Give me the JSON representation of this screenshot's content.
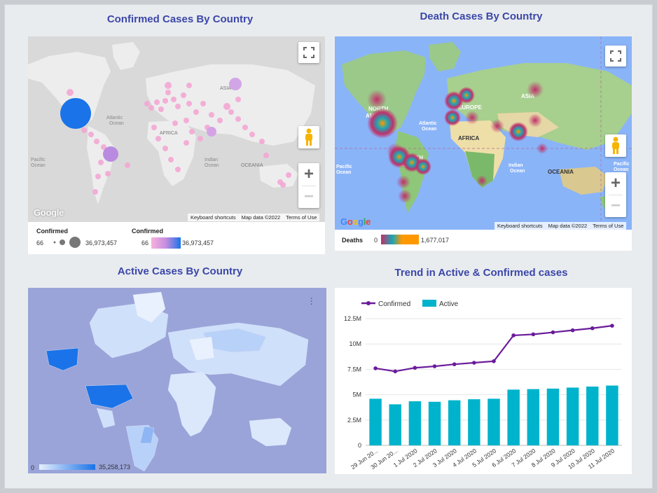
{
  "colors": {
    "title": "#3b47a8",
    "confirmed_line": "#6a1b9a",
    "active_bar": "#00b3cc",
    "active_map_bg": "#9aa4d9",
    "grey_map": "#d8d8d8",
    "ocean_blue": "#8ab4f8"
  },
  "panels": {
    "confirmed": {
      "title": "Confirmed Cases By Country",
      "legend": {
        "size_title": "Confirmed",
        "size_min": "66",
        "size_max": "36,973,457",
        "color_title": "Confirmed",
        "color_min": "66",
        "color_max": "36,973,457"
      }
    },
    "deaths": {
      "title": "Death Cases By Country",
      "legend": {
        "title": "Deaths",
        "min": "0",
        "max": "1,677,017"
      }
    },
    "active": {
      "title": "Active Cases By Country",
      "legend": {
        "min": "0",
        "max": "35,258,173"
      }
    },
    "trend": {
      "title": "Trend in Active & Confirmed cases"
    }
  },
  "map_labels": {
    "north_america": "NORTH\nAMERICA",
    "south_america": "SOUTH\nAMERICA",
    "europe": "EUROPE",
    "asia": "ASIA",
    "africa": "AFRICA",
    "oceania": "OCEANIA",
    "atlantic": "Atlantic\nOcean",
    "pacific": "Pacific\nOcean",
    "indian": "Indian\nOcean"
  },
  "map_chrome": {
    "google": "Google",
    "keyboard": "Keyboard shortcuts",
    "mapdata": "Map data ©2022",
    "terms": "Terms of Use"
  },
  "icons": {
    "fullscreen": "fullscreen-icon",
    "pegman": "pegman-icon",
    "zoom_in": "+",
    "zoom_out": "−",
    "menu": "more-vert-icon"
  },
  "chart_data": {
    "type": "line",
    "categories": [
      "29 Jun 20...",
      "30 Jun 20...",
      "1 Jul 2020",
      "2 Jul 2020",
      "3 Jul 2020",
      "4 Jul 2020",
      "5 Jul 2020",
      "6 Jul 2020",
      "7 Jul 2020",
      "8 Jul 2020",
      "9 Jul 2020",
      "10 Jul 2020",
      "11 Jul 2020"
    ],
    "series": [
      {
        "name": "Confirmed",
        "type": "line",
        "color": "#6a1b9a",
        "values": [
          7.6,
          7.3,
          7.65,
          7.8,
          8.0,
          8.15,
          8.3,
          10.85,
          10.95,
          11.15,
          11.35,
          11.55,
          11.8
        ]
      },
      {
        "name": "Active",
        "type": "bar",
        "color": "#00b3cc",
        "values": [
          4.6,
          4.05,
          4.35,
          4.3,
          4.45,
          4.55,
          4.6,
          5.5,
          5.55,
          5.6,
          5.7,
          5.8,
          5.9
        ]
      }
    ],
    "yticks": [
      "0",
      "2.5M",
      "5M",
      "7.5M",
      "10M",
      "12.5M"
    ],
    "ylim": [
      0,
      12.5
    ],
    "y_unit": "M",
    "grid": true,
    "legend_position": "top-left"
  }
}
